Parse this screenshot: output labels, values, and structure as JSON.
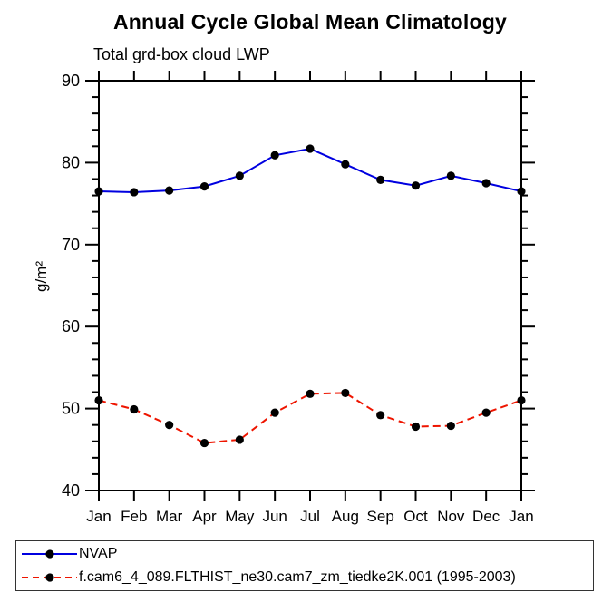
{
  "chart_data": {
    "type": "line",
    "title": "Annual Cycle Global Mean Climatology",
    "subtitle": "Total grd-box cloud LWP",
    "xlabel": "",
    "ylabel": "g/m²",
    "x_labels": [
      "Jan",
      "Feb",
      "Mar",
      "Apr",
      "May",
      "Jun",
      "Jul",
      "Aug",
      "Sep",
      "Oct",
      "Nov",
      "Dec",
      "Jan"
    ],
    "ylim": [
      40,
      90
    ],
    "y_major_step": 10,
    "y_minor_step": 2,
    "grid": false,
    "legend_position": "bottom-left",
    "marker_color": "#000000",
    "series": [
      {
        "name": "NVAP",
        "color": "#0000e0",
        "line_style": "solid",
        "values": [
          76.5,
          76.4,
          76.6,
          77.1,
          78.4,
          80.9,
          81.7,
          79.8,
          77.9,
          77.2,
          78.4,
          77.5,
          76.5
        ]
      },
      {
        "name": "f.cam6_4_089.FLTHIST_ne30.cam7_zm_tiedke2K.001 (1995-2003)",
        "color": "#ee1500",
        "line_style": "dashed",
        "values": [
          51.0,
          49.9,
          48.0,
          45.8,
          46.2,
          49.5,
          51.8,
          51.9,
          49.2,
          47.8,
          47.9,
          49.5,
          51.0
        ]
      }
    ]
  }
}
